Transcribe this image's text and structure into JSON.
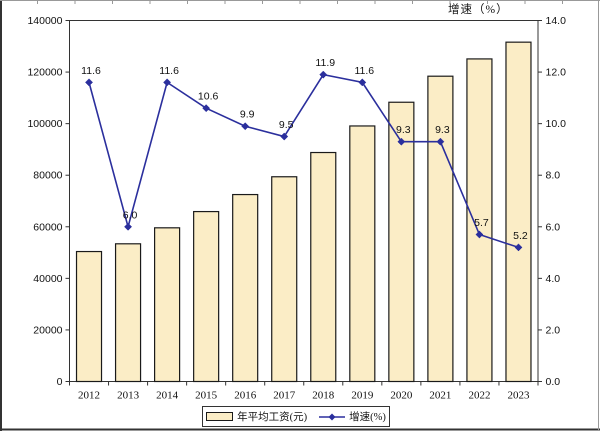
{
  "chart_data": {
    "type": "combo-bar-line",
    "categories": [
      "2012",
      "2013",
      "2014",
      "2015",
      "2016",
      "2017",
      "2018",
      "2019",
      "2020",
      "2021",
      "2022",
      "2023"
    ],
    "series": [
      {
        "name": "年平均工资(元)",
        "type": "bar",
        "axis": "left",
        "values": [
          50400,
          53400,
          59600,
          65900,
          72500,
          79400,
          88800,
          99100,
          108300,
          118400,
          125100,
          131600
        ],
        "fill_color": "#FBEDC6",
        "border_color": "#1a1a1a"
      },
      {
        "name": "增速(%)",
        "type": "line",
        "axis": "right",
        "marker": "diamond",
        "values": [
          11.6,
          6.0,
          11.6,
          10.6,
          9.9,
          9.5,
          11.9,
          11.6,
          9.3,
          9.3,
          5.7,
          5.2
        ],
        "data_labels": [
          "11.6",
          "6.0",
          "11.6",
          "10.6",
          "9.9",
          "9.5",
          "11.9",
          "11.6",
          "9.3",
          "9.3",
          "5.7",
          "5.2"
        ],
        "color": "#2B2F9D"
      }
    ],
    "left_axis": {
      "min": 0,
      "max": 140000,
      "step": 20000,
      "tick_labels": [
        "0",
        "20000",
        "40000",
        "60000",
        "80000",
        "100000",
        "120000",
        "140000"
      ]
    },
    "right_axis": {
      "min": 0,
      "max": 14,
      "step": 2,
      "title": "增速（%）",
      "tick_labels": [
        "0.0",
        "2.0",
        "4.0",
        "6.0",
        "8.0",
        "10.0",
        "12.0",
        "14.0"
      ]
    },
    "legend": {
      "position": "bottom",
      "items": [
        {
          "label": "年平均工资(元)",
          "swatch": "bar"
        },
        {
          "label": "增速(%)",
          "swatch": "line-diamond"
        }
      ]
    },
    "grid": false,
    "title": "",
    "colors": {
      "plot_border": "#333333",
      "axis_text": "#111111",
      "frame_dark": "#333333",
      "frame_light": "#999999"
    }
  }
}
